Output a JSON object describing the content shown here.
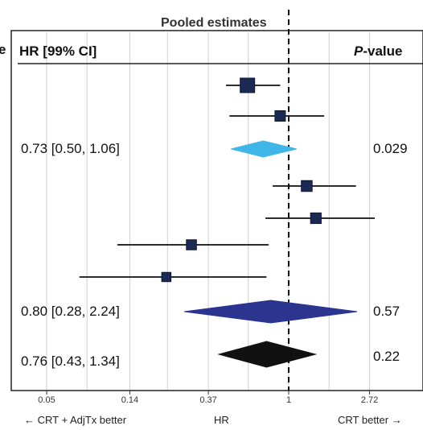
{
  "chart_data": {
    "type": "forest",
    "title": "Pooled estimates",
    "column_headers": {
      "left": "HR [99% CI]",
      "right": "P-value",
      "left_cut": "e"
    },
    "xscale": "log",
    "xlim": [
      0.04,
      3.2
    ],
    "reference_line": 1,
    "xticks": [
      {
        "value": 0.05,
        "label": "0.05"
      },
      {
        "value": 0.14,
        "label": "0.14"
      },
      {
        "value": 0.37,
        "label": "0.37"
      },
      {
        "value": 1,
        "label": "1"
      },
      {
        "value": 2.72,
        "label": "2.72"
      }
    ],
    "xlabel": "HR",
    "xlabel_left": "← CRT + AdjTx better",
    "xlabel_right": "CRT better →",
    "studies": [
      {
        "hr": 0.6,
        "lo": 0.46,
        "hi": 0.9,
        "weight": 1.0
      },
      {
        "hr": 0.9,
        "lo": 0.48,
        "hi": 1.55,
        "weight": 0.5
      },
      {
        "hr": 1.25,
        "lo": 0.82,
        "hi": 2.3,
        "weight": 0.55
      },
      {
        "hr": 1.4,
        "lo": 0.75,
        "hi": 2.9,
        "weight": 0.52
      },
      {
        "hr": 0.3,
        "lo": 0.12,
        "hi": 0.78,
        "weight": 0.45
      },
      {
        "hr": 0.22,
        "lo": 0.075,
        "hi": 0.76,
        "weight": 0.35
      }
    ],
    "pooled": [
      {
        "label": "0.73 [0.50, 1.06]",
        "hr": 0.73,
        "lo": 0.5,
        "hi": 1.06,
        "p": "0.029",
        "color": "#3fb6e8"
      },
      {
        "label": "0.80 [0.28, 2.24]",
        "hr": 0.8,
        "lo": 0.28,
        "hi": 2.24,
        "p": "0.57",
        "color": "#2b3590"
      },
      {
        "label": "0.76 [0.43, 1.34]",
        "hr": 0.76,
        "lo": 0.43,
        "hi": 1.34,
        "p": "0.22",
        "color": "#111111"
      }
    ],
    "colors": {
      "square": "#1b2a55",
      "grid": "#cfcfcf"
    }
  }
}
